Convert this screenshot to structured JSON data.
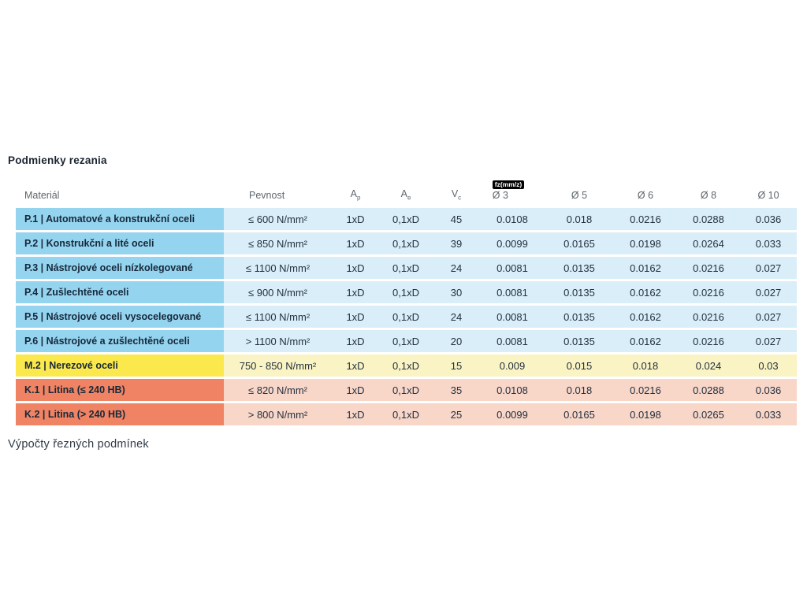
{
  "page": {
    "title": "Podmienky rezania",
    "footer_text": "Výpočty řezných podmínek"
  },
  "colors": {
    "blue-dark": "#95d4ef",
    "blue-light": "#d9eef8",
    "yellow-dark": "#fbe84d",
    "yellow-light": "#faf3c3",
    "red-dark": "#ef8363",
    "red-light": "#f8d6c8",
    "header-text": "#5f666c",
    "material-text": "#16283a",
    "value-text": "#243140",
    "badge-bg": "#000000",
    "badge-text": "#ffffff"
  },
  "table": {
    "headers": {
      "material": "Materiál",
      "pevnost": "Pevnost",
      "ap": {
        "base": "A",
        "sub": "p"
      },
      "ae": {
        "base": "A",
        "sub": "e"
      },
      "vc": {
        "base": "V",
        "sub": "c"
      },
      "fz_badge": "fz(mm/z)",
      "d3": "Ø 3",
      "d5": "Ø 5",
      "d6": "Ø 6",
      "d8": "Ø 8",
      "d10": "Ø 10"
    },
    "rows": [
      {
        "theme": "blue",
        "material": "P.1 | Automatové a konstrukční oceli",
        "pevnost": "≤ 600 N/mm²",
        "ap": "1xD",
        "ae": "0,1xD",
        "vc": "45",
        "d3": "0.0108",
        "d5": "0.018",
        "d6": "0.0216",
        "d8": "0.0288",
        "d10": "0.036"
      },
      {
        "theme": "blue",
        "material": "P.2 | Konstrukční a lité oceli",
        "pevnost": "≤ 850 N/mm²",
        "ap": "1xD",
        "ae": "0,1xD",
        "vc": "39",
        "d3": "0.0099",
        "d5": "0.0165",
        "d6": "0.0198",
        "d8": "0.0264",
        "d10": "0.033"
      },
      {
        "theme": "blue",
        "material": "P.3 | Nástrojové oceli nízkolegované",
        "pevnost": "≤ 1100 N/mm²",
        "ap": "1xD",
        "ae": "0,1xD",
        "vc": "24",
        "d3": "0.0081",
        "d5": "0.0135",
        "d6": "0.0162",
        "d8": "0.0216",
        "d10": "0.027"
      },
      {
        "theme": "blue",
        "material": "P.4 | Zušlechtěné oceli",
        "pevnost": "≤ 900 N/mm²",
        "ap": "1xD",
        "ae": "0,1xD",
        "vc": "30",
        "d3": "0.0081",
        "d5": "0.0135",
        "d6": "0.0162",
        "d8": "0.0216",
        "d10": "0.027"
      },
      {
        "theme": "blue",
        "material": "P.5 | Nástrojové oceli vysocelegované",
        "pevnost": "≤ 1100 N/mm²",
        "ap": "1xD",
        "ae": "0,1xD",
        "vc": "24",
        "d3": "0.0081",
        "d5": "0.0135",
        "d6": "0.0162",
        "d8": "0.0216",
        "d10": "0.027"
      },
      {
        "theme": "blue",
        "material": "P.6 | Nástrojové a zušlechtěné oceli",
        "pevnost": "> 1100 N/mm²",
        "ap": "1xD",
        "ae": "0,1xD",
        "vc": "20",
        "d3": "0.0081",
        "d5": "0.0135",
        "d6": "0.0162",
        "d8": "0.0216",
        "d10": "0.027"
      },
      {
        "theme": "yellow",
        "material": "M.2 | Nerezové oceli",
        "pevnost": "750 - 850 N/mm²",
        "ap": "1xD",
        "ae": "0,1xD",
        "vc": "15",
        "d3": "0.009",
        "d5": "0.015",
        "d6": "0.018",
        "d8": "0.024",
        "d10": "0.03"
      },
      {
        "theme": "red",
        "material": "K.1 | Litina (≤ 240 HB)",
        "pevnost": "≤ 820 N/mm²",
        "ap": "1xD",
        "ae": "0,1xD",
        "vc": "35",
        "d3": "0.0108",
        "d5": "0.018",
        "d6": "0.0216",
        "d8": "0.0288",
        "d10": "0.036"
      },
      {
        "theme": "red",
        "material": "K.2 | Litina (> 240 HB)",
        "pevnost": "> 800 N/mm²",
        "ap": "1xD",
        "ae": "0,1xD",
        "vc": "25",
        "d3": "0.0099",
        "d5": "0.0165",
        "d6": "0.0198",
        "d8": "0.0265",
        "d10": "0.033"
      }
    ]
  }
}
